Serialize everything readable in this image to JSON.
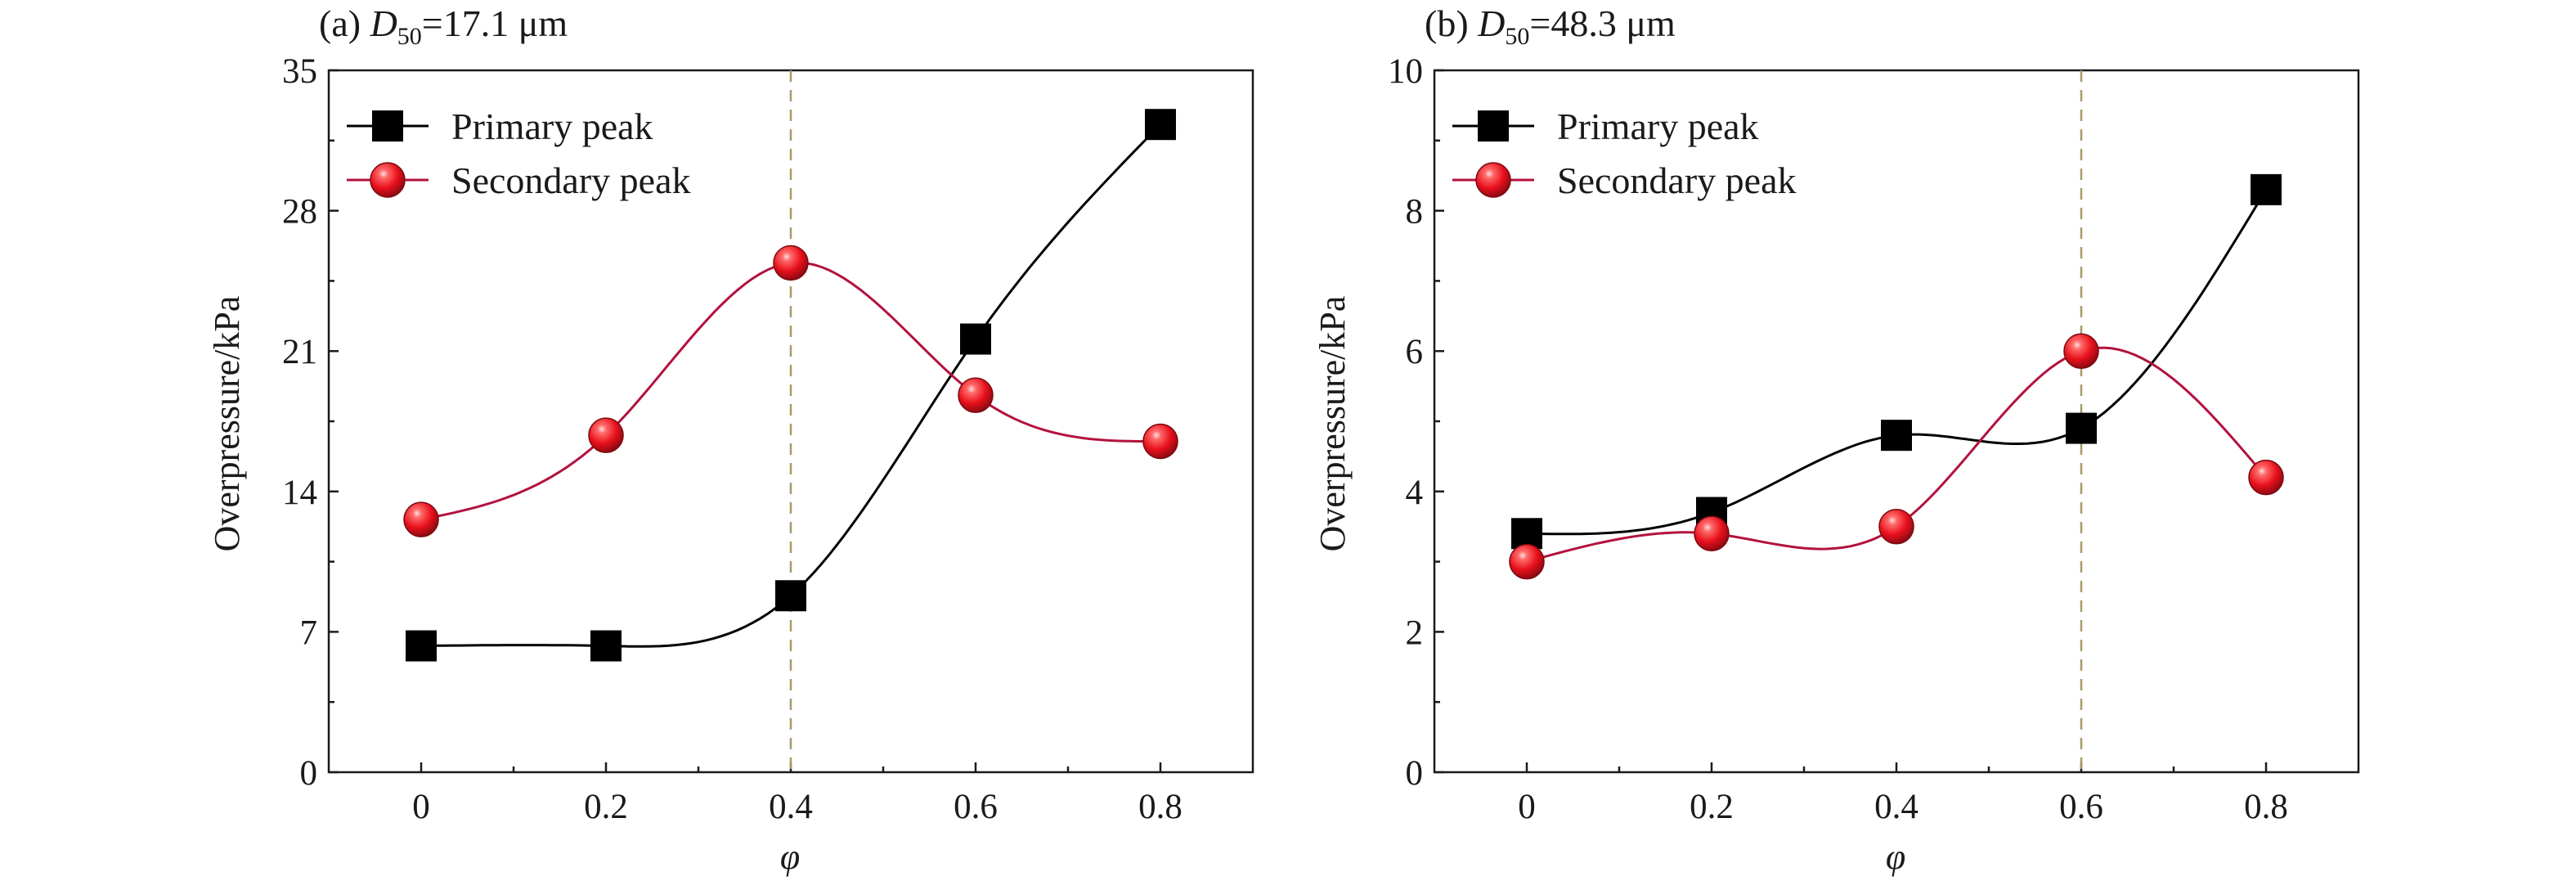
{
  "chart_data": [
    {
      "type": "line",
      "panel_label": "(a)",
      "title_symbol": "D",
      "title_subscript": "50",
      "title_value": "=17.1 μm",
      "xlabel": "φ",
      "ylabel": "Overpressure/kPa",
      "x": [
        0,
        0.2,
        0.4,
        0.6,
        0.8
      ],
      "x_tick_labels": [
        "0",
        "0.2",
        "0.4",
        "0.6",
        "0.8"
      ],
      "xlim": [
        -0.1,
        0.9
      ],
      "ylim": [
        0,
        35
      ],
      "y_ticks": [
        0,
        7,
        14,
        21,
        28,
        35
      ],
      "y_tick_labels": [
        "0",
        "7",
        "14",
        "21",
        "28",
        "35"
      ],
      "vline_x": 0.4,
      "legend_position": "top-left",
      "series": [
        {
          "name": "Primary peak",
          "marker": "square",
          "color": "#000000",
          "values": [
            6.3,
            6.3,
            8.8,
            21.6,
            32.3
          ]
        },
        {
          "name": "Secondary peak",
          "marker": "circle",
          "color": "#e8101c",
          "line_color": "#b3123e",
          "values": [
            12.6,
            16.8,
            25.4,
            18.8,
            16.5
          ]
        }
      ]
    },
    {
      "type": "line",
      "panel_label": "(b)",
      "title_symbol": "D",
      "title_subscript": "50",
      "title_value": "=48.3 μm",
      "xlabel": "φ",
      "ylabel": "Overpressure/kPa",
      "x": [
        0,
        0.2,
        0.4,
        0.6,
        0.8
      ],
      "x_tick_labels": [
        "0",
        "0.2",
        "0.4",
        "0.6",
        "0.8"
      ],
      "xlim": [
        -0.1,
        0.9
      ],
      "ylim": [
        0,
        10
      ],
      "y_ticks": [
        0,
        2,
        4,
        6,
        8,
        10
      ],
      "y_tick_labels": [
        "0",
        "2",
        "4",
        "6",
        "8",
        "10"
      ],
      "vline_x": 0.6,
      "legend_position": "top-left",
      "series": [
        {
          "name": "Primary peak",
          "marker": "square",
          "color": "#000000",
          "values": [
            3.4,
            3.7,
            4.8,
            4.9,
            8.3
          ]
        },
        {
          "name": "Secondary peak",
          "marker": "circle",
          "color": "#e8101c",
          "line_color": "#b3123e",
          "values": [
            3.0,
            3.4,
            3.5,
            6.0,
            4.2
          ]
        }
      ]
    }
  ],
  "colors": {
    "vline": "#a89a6a",
    "axis": "#1a1a1a"
  }
}
